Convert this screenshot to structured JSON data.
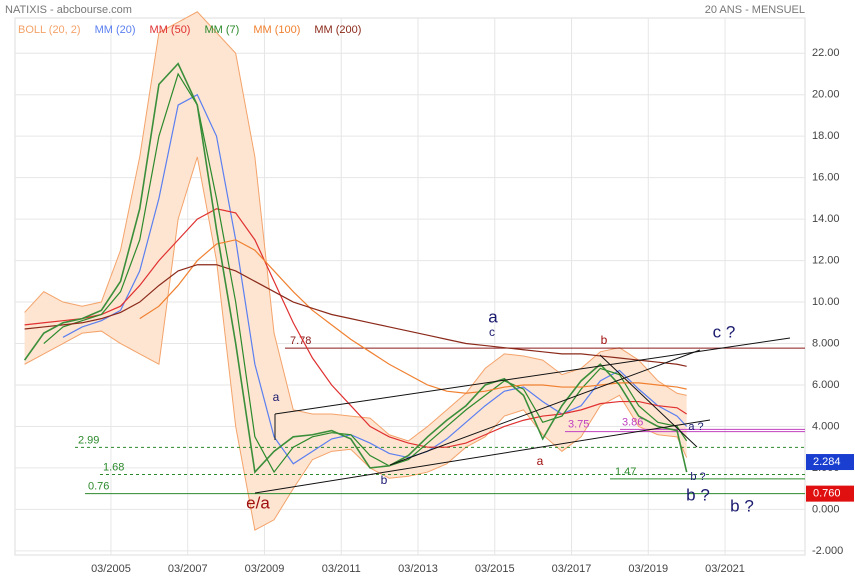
{
  "header": {
    "title": "NATIXIS - abcbourse.com",
    "period": "20 ANS - MENSUEL"
  },
  "chart_data": {
    "type": "line",
    "x": [
      "2002-12",
      "2003-06",
      "2003-12",
      "2004-06",
      "2004-12",
      "2005-06",
      "2005-12",
      "2006-06",
      "2006-12",
      "2007-06",
      "2007-12",
      "2008-06",
      "2008-12",
      "2009-06",
      "2009-12",
      "2010-06",
      "2010-12",
      "2011-06",
      "2011-12",
      "2012-06",
      "2012-12",
      "2013-06",
      "2013-12",
      "2014-06",
      "2014-12",
      "2015-06",
      "2015-12",
      "2016-06",
      "2016-12",
      "2017-06",
      "2017-12",
      "2018-06",
      "2018-12",
      "2019-06",
      "2019-12",
      "2020-03"
    ],
    "values": [
      7.2,
      8.5,
      9.0,
      9.2,
      9.6,
      11.0,
      14.5,
      20.5,
      21.5,
      19.5,
      13.5,
      8.0,
      1.8,
      2.8,
      3.5,
      3.6,
      3.8,
      3.4,
      2.0,
      2.1,
      2.6,
      3.5,
      4.3,
      5.0,
      6.0,
      6.3,
      5.5,
      3.4,
      5.0,
      6.2,
      7.0,
      6.0,
      4.5,
      4.0,
      3.8,
      1.8
    ],
    "color": "#3b8f3b",
    "bands": {
      "name": "BOLL (20, 2)",
      "color": "#f4a36a",
      "fill": "#fde5d2",
      "upper": [
        9.5,
        10.5,
        10.0,
        9.8,
        10.0,
        12.5,
        17.0,
        23.0,
        23.5,
        24.0,
        23.0,
        22.0,
        17.0,
        8.5,
        4.8,
        4.6,
        4.6,
        4.5,
        4.4,
        3.6,
        3.3,
        4.0,
        4.8,
        5.6,
        6.8,
        7.5,
        7.4,
        7.2,
        6.5,
        6.8,
        7.6,
        7.8,
        7.2,
        6.2,
        5.6,
        5.5
      ],
      "lower": [
        7.0,
        7.5,
        8.0,
        8.5,
        8.6,
        8.0,
        7.5,
        7.0,
        14.0,
        17.0,
        12.0,
        4.0,
        -1.0,
        -0.5,
        1.0,
        2.4,
        2.8,
        2.9,
        2.0,
        1.5,
        1.6,
        1.8,
        2.2,
        3.0,
        3.5,
        4.5,
        4.8,
        3.6,
        2.8,
        3.5,
        5.0,
        5.5,
        4.0,
        3.6,
        3.5,
        2.5
      ]
    },
    "series": [
      {
        "name": "MM (20)",
        "color": "#5b7ff0",
        "values": [
          null,
          null,
          8.3,
          8.8,
          9.1,
          9.6,
          11.5,
          15.0,
          19.5,
          20.0,
          18.0,
          13.0,
          7.0,
          3.5,
          2.2,
          2.8,
          3.4,
          3.6,
          3.2,
          2.7,
          2.5,
          2.8,
          3.4,
          4.2,
          5.0,
          5.7,
          5.9,
          5.2,
          4.6,
          5.0,
          6.2,
          6.7,
          5.8,
          5.0,
          4.5,
          4.0
        ]
      },
      {
        "name": "MM (50)",
        "color": "#e03030",
        "values": [
          8.9,
          9.0,
          9.1,
          9.2,
          9.4,
          9.8,
          10.8,
          12.0,
          13.0,
          14.0,
          14.5,
          14.3,
          13.0,
          11.0,
          9.0,
          7.3,
          6.0,
          5.0,
          4.0,
          3.5,
          3.2,
          3.0,
          3.0,
          3.2,
          3.6,
          4.0,
          4.3,
          4.5,
          4.6,
          4.8,
          5.1,
          5.2,
          5.2,
          5.0,
          4.9,
          4.6
        ]
      },
      {
        "name": "MM (7)",
        "color": "#2c8a2c",
        "values": [
          null,
          8.0,
          8.8,
          9.1,
          9.4,
          10.5,
          13.0,
          18.0,
          21.0,
          19.5,
          15.0,
          10.0,
          3.5,
          1.8,
          3.0,
          3.5,
          3.7,
          3.6,
          2.6,
          2.1,
          2.4,
          3.2,
          4.0,
          4.8,
          5.5,
          6.2,
          5.8,
          4.2,
          4.5,
          5.8,
          6.8,
          6.5,
          5.0,
          4.2,
          4.0,
          3.3
        ]
      },
      {
        "name": "MM (100)",
        "color": "#f08030",
        "values": [
          null,
          null,
          null,
          null,
          null,
          null,
          9.2,
          9.8,
          10.8,
          12.0,
          12.8,
          13.0,
          12.5,
          11.5,
          10.5,
          9.6,
          8.9,
          8.2,
          7.6,
          7.0,
          6.5,
          6.0,
          5.7,
          5.6,
          5.7,
          5.9,
          6.0,
          6.0,
          5.9,
          5.9,
          6.0,
          6.1,
          6.1,
          6.0,
          5.9,
          5.8
        ]
      },
      {
        "name": "MM (200)",
        "color": "#8b2a1a",
        "values": [
          8.7,
          8.8,
          8.9,
          9.0,
          9.2,
          9.5,
          10.0,
          10.8,
          11.5,
          11.8,
          11.8,
          11.5,
          11.0,
          10.5,
          10.0,
          9.7,
          9.4,
          9.2,
          9.0,
          8.8,
          8.6,
          8.4,
          8.2,
          8.0,
          7.9,
          7.8,
          7.7,
          7.6,
          7.5,
          7.5,
          7.4,
          7.3,
          7.2,
          7.1,
          7.0,
          6.9
        ]
      }
    ],
    "xlim": [
      "2002-09",
      "2023-04"
    ],
    "xticks": [
      {
        "value": "2005-03",
        "label": "03/2005"
      },
      {
        "value": "2007-03",
        "label": "03/2007"
      },
      {
        "value": "2009-03",
        "label": "03/2009"
      },
      {
        "value": "2011-03",
        "label": "03/2011"
      },
      {
        "value": "2013-03",
        "label": "03/2013"
      },
      {
        "value": "2015-03",
        "label": "03/2015"
      },
      {
        "value": "2017-03",
        "label": "03/2017"
      },
      {
        "value": "2019-03",
        "label": "03/2019"
      },
      {
        "value": "2021-03",
        "label": "03/2021"
      }
    ],
    "ylim": [
      -2.2,
      23.7
    ],
    "yticks": [
      {
        "value": -2,
        "label": "-2.000"
      },
      {
        "value": 0,
        "label": "0.000"
      },
      {
        "value": 2,
        "label": "2.000"
      },
      {
        "value": 4,
        "label": "4.000"
      },
      {
        "value": 6,
        "label": "6.000"
      },
      {
        "value": 8,
        "label": "8.000"
      },
      {
        "value": 10,
        "label": "10.00"
      },
      {
        "value": 12,
        "label": "12.00"
      },
      {
        "value": 14,
        "label": "14.00"
      },
      {
        "value": 16,
        "label": "16.00"
      },
      {
        "value": 18,
        "label": "18.00"
      },
      {
        "value": 20,
        "label": "20.00"
      },
      {
        "value": 22,
        "label": "22.00"
      }
    ],
    "grid": true,
    "levels": [
      {
        "value": 7.78,
        "color": "#8b1a1a",
        "dash": false
      },
      {
        "value": 2.99,
        "color": "#2c8a2c",
        "dash": true
      },
      {
        "value": 1.68,
        "color": "#2c8a2c",
        "dash": true
      },
      {
        "value": 0.76,
        "color": "#2c8a2c",
        "dash": false
      },
      {
        "value": 1.47,
        "color": "#2c8a2c",
        "dash": false
      },
      {
        "value": 3.75,
        "color": "#c040c0",
        "dash": false
      },
      {
        "value": 3.86,
        "color": "#c040c0",
        "dash": false
      }
    ],
    "price_tags": [
      {
        "value": 2.284,
        "label": "2.284",
        "color": "#1a3fd0"
      },
      {
        "value": 0.76,
        "label": "0.760",
        "color": "#e01010"
      }
    ]
  },
  "annotations": [
    "a",
    "b",
    "c",
    "a",
    "a",
    "b",
    "e/a",
    "c ?",
    "b ?",
    "b ?",
    "a ?",
    "b ?"
  ]
}
